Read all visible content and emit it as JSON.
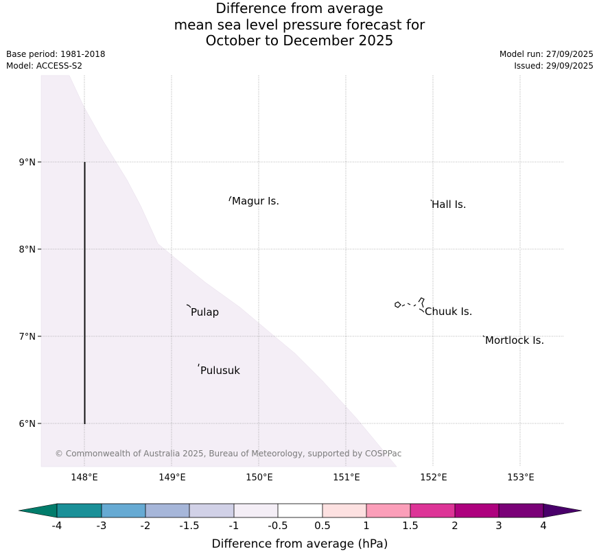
{
  "title": {
    "line1": "Difference from average",
    "line2": "mean sea level pressure forecast for",
    "line3": "October to December 2025"
  },
  "meta": {
    "base_period": "Base period: 1981-2018",
    "model": "Model: ACCESS-S2",
    "model_run": "Model run: 27/09/2025",
    "issued": "Issued: 29/09/2025"
  },
  "map": {
    "lon_labels": [
      "148°E",
      "149°E",
      "150°E",
      "151°E",
      "152°E",
      "153°E"
    ],
    "lat_labels": [
      "9°N",
      "8°N",
      "7°N",
      "6°N"
    ],
    "places": [
      "Magur Is.",
      "Hall Is.",
      "Pulap",
      "Chuuk Is.",
      "Mortlock Is.",
      "Pulusuk"
    ],
    "copyright": "© Commonwealth of Australia 2025, Bureau of Meteorology, supported by COSPPac",
    "shaded_region_color": "#f4eef6"
  },
  "colorbar": {
    "title": "Difference from average (hPa)",
    "labels": [
      "-4",
      "-3",
      "-2",
      "-1.5",
      "-1",
      "-0.5",
      "0.5",
      "1",
      "1.5",
      "2",
      "3",
      "4"
    ],
    "colors": [
      "#017c6b",
      "#1a9098",
      "#66aad3",
      "#a6b6d9",
      "#d1d1e7",
      "#f4eef6",
      "#ffffff",
      "#fde1e1",
      "#fb9eb9",
      "#dd3497",
      "#ae017e",
      "#7a0177",
      "#49006a"
    ]
  }
}
